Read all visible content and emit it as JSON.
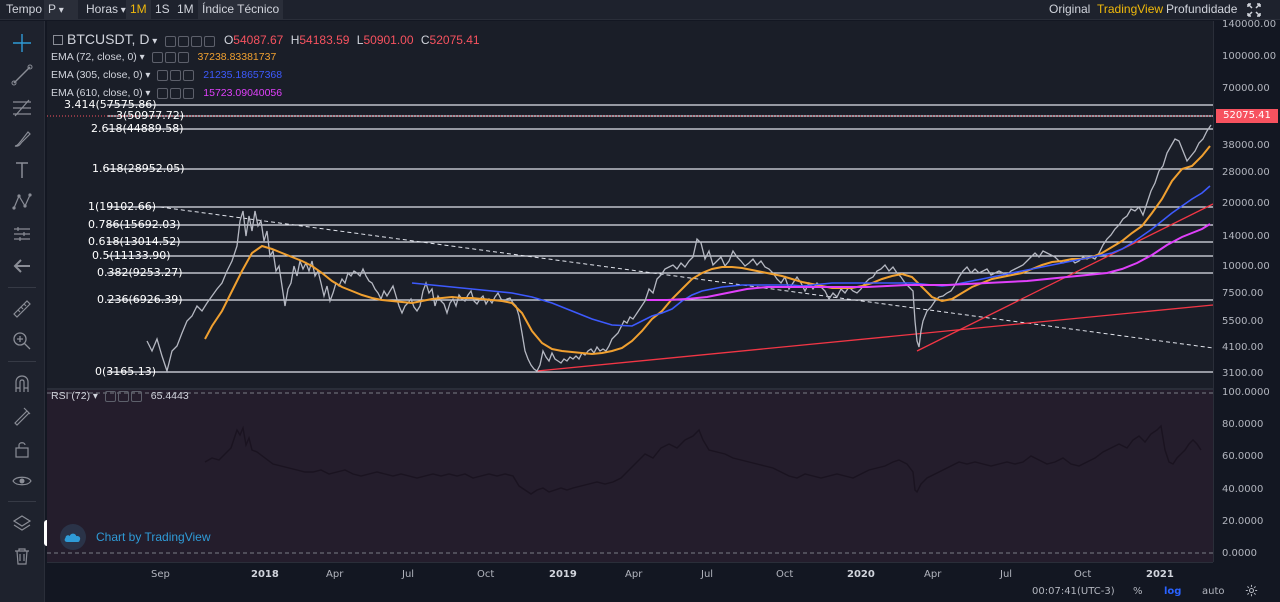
{
  "toolbar": {
    "time_label": "Tempo",
    "interval_select": "P",
    "hours_label": "Horas",
    "btn_1m_active": "1M",
    "btn_1s": "1S",
    "btn_1m": "1M",
    "indicator_label": "Índice Técnico",
    "original": "Original",
    "tradingview": "TradingView",
    "depth": "Profundidade",
    "fullscreen_icon": "expand-icon"
  },
  "legend": {
    "symbol": "BTCUSDT, D",
    "o_key": "O",
    "o_val": "54087.67",
    "h_key": "H",
    "h_val": "54183.59",
    "l_key": "L",
    "l_val": "50901.00",
    "c_key": "C",
    "c_val": "52075.41",
    "ema1_label": "EMA (72, close, 0)",
    "ema1_val": "37238.83381737",
    "ema1_color": "#f0a030",
    "ema2_label": "EMA (305, close, 0)",
    "ema2_val": "21235.18657368",
    "ema2_color": "#3d5afe",
    "ema3_label": "EMA (610, close, 0)",
    "ema3_val": "15723.09040056",
    "ema3_color": "#e040fb",
    "rsi_label": "RSI (72)",
    "rsi_val": "65.4443"
  },
  "fib_levels": [
    {
      "label": "3.414(57575.86)"
    },
    {
      "label": "3(50977.72)"
    },
    {
      "label": "2.618(44889.58)"
    },
    {
      "label": "1.618(28952.05)"
    },
    {
      "label": "1(19102.66)"
    },
    {
      "label": "0.786(15692.03)"
    },
    {
      "label": "0.618(13014.52)"
    },
    {
      "label": "0.5(11133.90)"
    },
    {
      "label": "0.382(9253.27)"
    },
    {
      "label": "0.236(6926.39)"
    },
    {
      "label": "0(3165.13)"
    }
  ],
  "price_axis": [
    "140000.00",
    "100000.00",
    "70000.00",
    "52075.41",
    "38000.00",
    "28000.00",
    "20000.00",
    "14000.00",
    "10000.00",
    "7500.00",
    "5500.00",
    "4100.00",
    "3100.00"
  ],
  "rsi_axis": [
    "100.0000",
    "80.0000",
    "60.0000",
    "40.0000",
    "20.0000",
    "0.0000"
  ],
  "time_axis": [
    "Sep",
    "2018",
    "Apr",
    "Jul",
    "Oct",
    "2019",
    "Apr",
    "Jul",
    "Oct",
    "2020",
    "Apr",
    "Jul",
    "Oct",
    "2021"
  ],
  "current_price": "52075.41",
  "watermark": "Chart by TradingView",
  "bottom": {
    "clock": "00:07:41",
    "tz": "(UTC-3)",
    "pct": "%",
    "log": "log",
    "auto": "auto"
  },
  "left_tools": [
    "crosshair-icon",
    "trend-line-icon",
    "fib-icon",
    "brush-icon",
    "text-icon",
    "pattern-icon",
    "measure-icon",
    "back-arrow-icon",
    "ruler-icon",
    "zoom-icon",
    "magnet-icon",
    "lock-draw-icon",
    "lock-icon",
    "eye-icon",
    "layers-icon",
    "trash-icon"
  ]
}
